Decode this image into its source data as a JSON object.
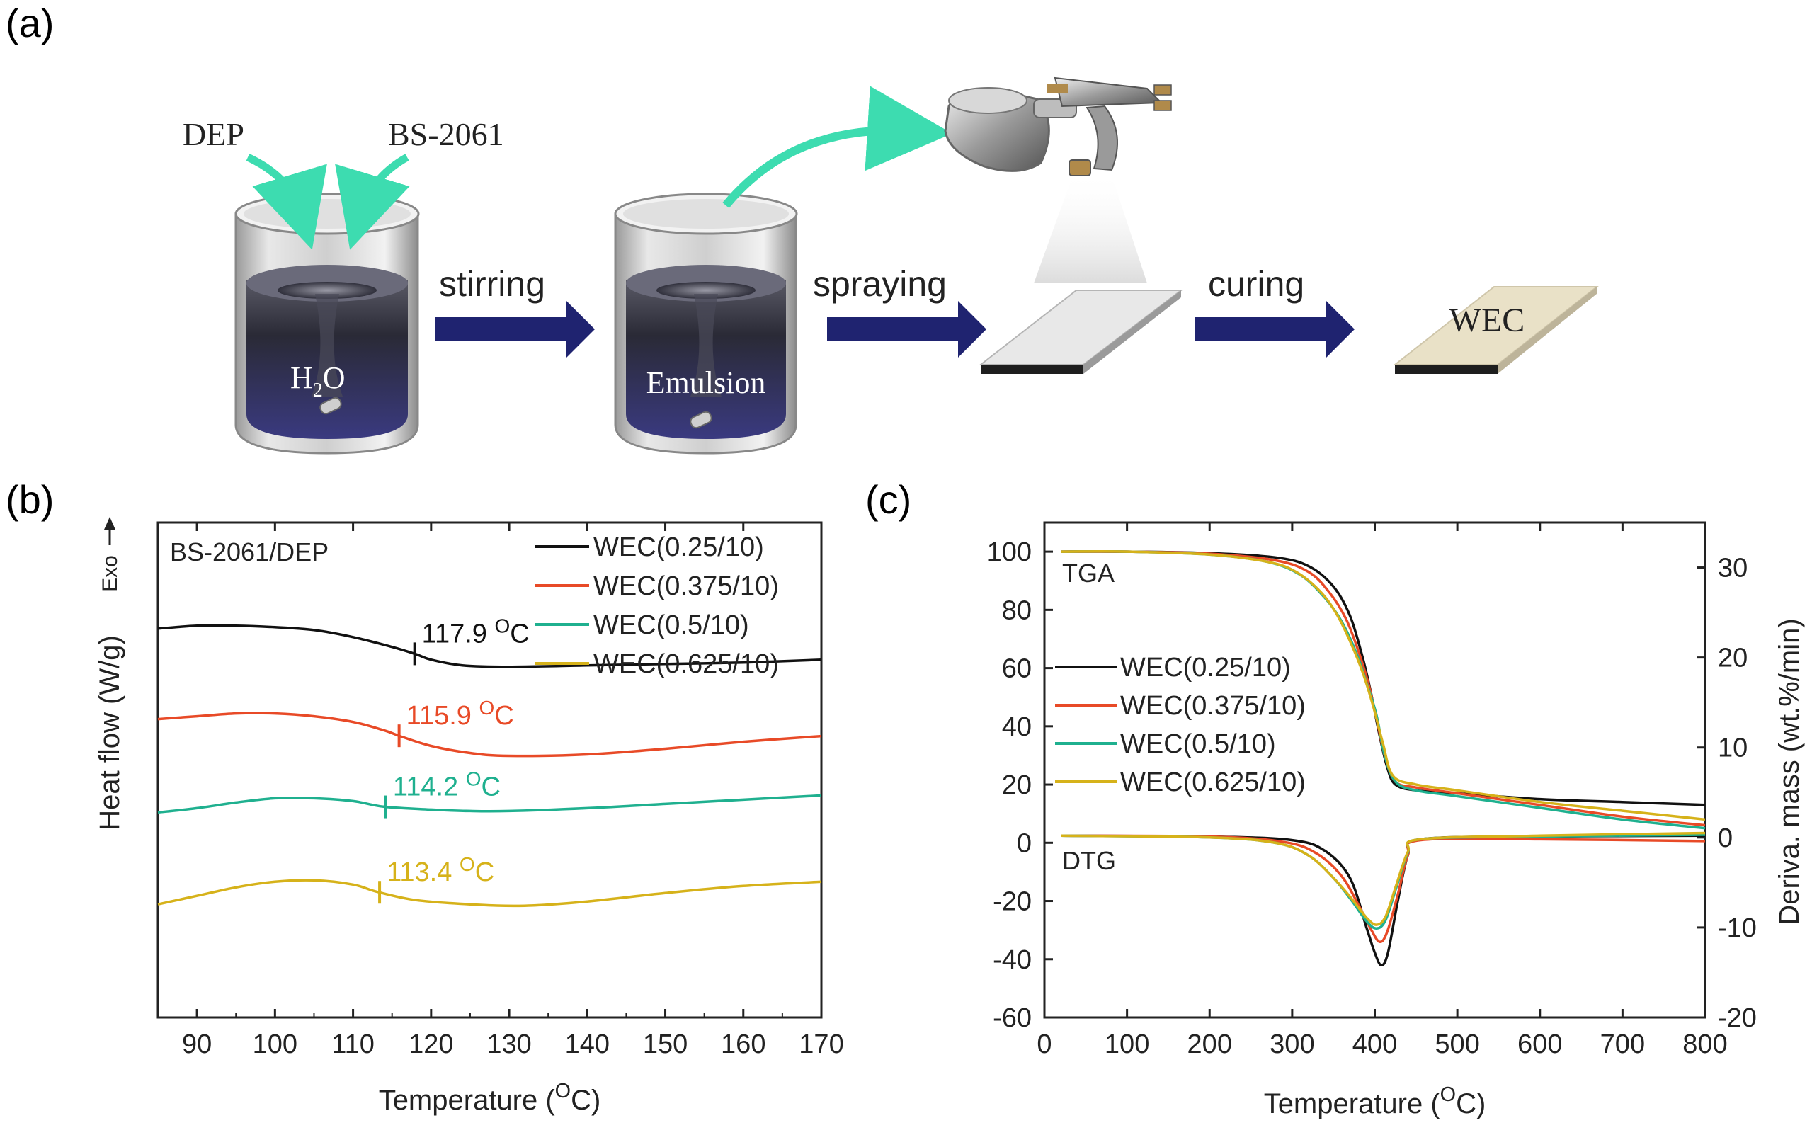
{
  "panels": {
    "a": "(a)",
    "b": "(b)",
    "c": "(c)"
  },
  "schematic": {
    "reagent_1": "DEP",
    "reagent_2": "BS-2061",
    "beaker_1_label": "H",
    "beaker_1_sub": "2",
    "beaker_1_tail": "O",
    "beaker_2_label": "Emulsion",
    "step_1": "stirring",
    "step_2": "spraying",
    "step_3": "curing",
    "product": "WEC",
    "colors": {
      "arrow": "#1f2370",
      "green_arrow": "#3ddcb0"
    }
  },
  "chart_data": [
    {
      "type": "line",
      "id": "b",
      "annotation": "BS-2061/DEP",
      "ylabel": "Heat flow (W/g)",
      "exo_label": "Exo",
      "xlabel_pre": "Temperature (",
      "xlabel_sup": "O",
      "xlabel_post": "C)",
      "xlim": [
        85,
        170
      ],
      "xticks": [
        90,
        100,
        110,
        120,
        130,
        140,
        150,
        160,
        170
      ],
      "y_ticks_shown": false,
      "series": [
        {
          "name": "WEC(0.25/10)",
          "color": "#111111",
          "points": [
            [
              85,
              1.0
            ],
            [
              90,
              1.02
            ],
            [
              95,
              1.02
            ],
            [
              100,
              1.01
            ],
            [
              105,
              0.99
            ],
            [
              110,
              0.94
            ],
            [
              115,
              0.87
            ],
            [
              118,
              0.82
            ],
            [
              120,
              0.78
            ],
            [
              124,
              0.74
            ],
            [
              130,
              0.73
            ],
            [
              140,
              0.74
            ],
            [
              150,
              0.75
            ],
            [
              160,
              0.76
            ],
            [
              170,
              0.78
            ]
          ],
          "tg": 117.9,
          "tg_label": "117.9",
          "tg_unit_sup": "O",
          "tg_unit": "C"
        },
        {
          "name": "WEC(0.375/10)",
          "color": "#e84a27",
          "points": [
            [
              85,
              0.36
            ],
            [
              90,
              0.38
            ],
            [
              95,
              0.4
            ],
            [
              100,
              0.4
            ],
            [
              105,
              0.38
            ],
            [
              110,
              0.34
            ],
            [
              114,
              0.28
            ],
            [
              116,
              0.24
            ],
            [
              120,
              0.17
            ],
            [
              125,
              0.12
            ],
            [
              130,
              0.1
            ],
            [
              140,
              0.11
            ],
            [
              150,
              0.15
            ],
            [
              160,
              0.2
            ],
            [
              170,
              0.24
            ]
          ],
          "tg": 115.9,
          "tg_label": "115.9",
          "tg_unit_sup": "O",
          "tg_unit": "C"
        },
        {
          "name": "WEC(0.5/10)",
          "color": "#1fb08f",
          "points": [
            [
              85,
              -0.3
            ],
            [
              90,
              -0.27
            ],
            [
              95,
              -0.23
            ],
            [
              100,
              -0.2
            ],
            [
              105,
              -0.2
            ],
            [
              110,
              -0.22
            ],
            [
              114,
              -0.26
            ],
            [
              120,
              -0.28
            ],
            [
              125,
              -0.29
            ],
            [
              130,
              -0.29
            ],
            [
              140,
              -0.27
            ],
            [
              150,
              -0.24
            ],
            [
              160,
              -0.21
            ],
            [
              170,
              -0.18
            ]
          ],
          "tg": 114.2,
          "tg_label": "114.2",
          "tg_unit_sup": "O",
          "tg_unit": "C"
        },
        {
          "name": "WEC(0.625/10)",
          "color": "#d6b21a",
          "points": [
            [
              85,
              -0.95
            ],
            [
              90,
              -0.89
            ],
            [
              95,
              -0.83
            ],
            [
              100,
              -0.79
            ],
            [
              105,
              -0.78
            ],
            [
              110,
              -0.81
            ],
            [
              113,
              -0.86
            ],
            [
              118,
              -0.92
            ],
            [
              125,
              -0.95
            ],
            [
              132,
              -0.96
            ],
            [
              140,
              -0.93
            ],
            [
              150,
              -0.87
            ],
            [
              160,
              -0.82
            ],
            [
              170,
              -0.79
            ]
          ],
          "tg": 113.4,
          "tg_label": "113.4",
          "tg_unit_sup": "O",
          "tg_unit": "C"
        }
      ]
    },
    {
      "type": "line",
      "id": "c",
      "annotation_top": "TGA",
      "annotation_bottom": "DTG",
      "ylabel_right": "Deriva. mass (wt.%/min)",
      "xlabel_pre": "Temperature (",
      "xlabel_sup": "O",
      "xlabel_post": "C)",
      "xlim": [
        0,
        800
      ],
      "ylim": [
        -60,
        110
      ],
      "ylim_right": [
        -20,
        35
      ],
      "xticks": [
        0,
        100,
        200,
        300,
        400,
        500,
        600,
        700,
        800
      ],
      "yticks": [
        -60,
        -40,
        -20,
        0,
        20,
        40,
        60,
        80,
        100
      ],
      "yticks_right": [
        -20,
        -10,
        0,
        10,
        20,
        30
      ],
      "tga_series": [
        {
          "name": "WEC(0.25/10)",
          "color": "#111111",
          "points": [
            [
              20,
              100
            ],
            [
              100,
              100
            ],
            [
              200,
              99.5
            ],
            [
              280,
              98
            ],
            [
              320,
              95
            ],
            [
              350,
              88
            ],
            [
              370,
              78
            ],
            [
              385,
              64
            ],
            [
              395,
              52
            ],
            [
              405,
              38
            ],
            [
              415,
              26
            ],
            [
              425,
              20
            ],
            [
              450,
              18
            ],
            [
              500,
              17
            ],
            [
              600,
              15
            ],
            [
              700,
              14
            ],
            [
              800,
              13
            ]
          ]
        },
        {
          "name": "WEC(0.375/10)",
          "color": "#e84a27",
          "points": [
            [
              20,
              100
            ],
            [
              100,
              100
            ],
            [
              200,
              99.3
            ],
            [
              280,
              97
            ],
            [
              320,
              93
            ],
            [
              345,
              86
            ],
            [
              365,
              77
            ],
            [
              380,
              66
            ],
            [
              392,
              55
            ],
            [
              402,
              43
            ],
            [
              412,
              30
            ],
            [
              425,
              21
            ],
            [
              450,
              19
            ],
            [
              500,
              17
            ],
            [
              600,
              13
            ],
            [
              700,
              9
            ],
            [
              800,
              6
            ]
          ]
        },
        {
          "name": "WEC(0.5/10)",
          "color": "#1fb08f",
          "points": [
            [
              20,
              100
            ],
            [
              100,
              100
            ],
            [
              200,
              99
            ],
            [
              270,
              96.5
            ],
            [
              310,
              92
            ],
            [
              340,
              84
            ],
            [
              360,
              76
            ],
            [
              378,
              65
            ],
            [
              390,
              55
            ],
            [
              402,
              44
            ],
            [
              412,
              30
            ],
            [
              425,
              21
            ],
            [
              450,
              18
            ],
            [
              500,
              16
            ],
            [
              600,
              12
            ],
            [
              700,
              8
            ],
            [
              800,
              5
            ]
          ]
        },
        {
          "name": "WEC(0.625/10)",
          "color": "#d6b21a",
          "points": [
            [
              20,
              100
            ],
            [
              100,
              100
            ],
            [
              200,
              99
            ],
            [
              270,
              96.5
            ],
            [
              305,
              93
            ],
            [
              335,
              86
            ],
            [
              355,
              78
            ],
            [
              372,
              68
            ],
            [
              386,
              58
            ],
            [
              398,
              47
            ],
            [
              410,
              34
            ],
            [
              422,
              23
            ],
            [
              450,
              20
            ],
            [
              500,
              18
            ],
            [
              600,
              14
            ],
            [
              700,
              11
            ],
            [
              800,
              8
            ]
          ]
        }
      ],
      "dtg_series": [
        {
          "name": "WEC(0.25/10)",
          "color": "#111111",
          "points": [
            [
              20,
              0.2
            ],
            [
              200,
              0.1
            ],
            [
              300,
              -0.3
            ],
            [
              340,
              -1.5
            ],
            [
              370,
              -4.5
            ],
            [
              390,
              -10
            ],
            [
              400,
              -12.8
            ],
            [
              408,
              -14.2
            ],
            [
              416,
              -12.8
            ],
            [
              428,
              -7
            ],
            [
              440,
              -2
            ],
            [
              455,
              -0.2
            ],
            [
              600,
              0.1
            ],
            [
              800,
              0.2
            ]
          ]
        },
        {
          "name": "WEC(0.375/10)",
          "color": "#e84a27",
          "points": [
            [
              20,
              0.2
            ],
            [
              200,
              0.1
            ],
            [
              290,
              -0.5
            ],
            [
              330,
              -1.8
            ],
            [
              360,
              -4.3
            ],
            [
              382,
              -7.8
            ],
            [
              396,
              -10.3
            ],
            [
              406,
              -11.6
            ],
            [
              415,
              -10.5
            ],
            [
              428,
              -6.3
            ],
            [
              440,
              -2
            ],
            [
              455,
              -0.3
            ],
            [
              600,
              -0.2
            ],
            [
              800,
              -0.4
            ]
          ]
        },
        {
          "name": "WEC(0.5/10)",
          "color": "#1fb08f",
          "points": [
            [
              20,
              0.2
            ],
            [
              200,
              0.0
            ],
            [
              280,
              -0.6
            ],
            [
              320,
              -2
            ],
            [
              350,
              -4.5
            ],
            [
              372,
              -7
            ],
            [
              390,
              -9.3
            ],
            [
              402,
              -10.1
            ],
            [
              413,
              -9.2
            ],
            [
              426,
              -5.6
            ],
            [
              440,
              -1.7
            ],
            [
              455,
              -0.2
            ],
            [
              600,
              0.1
            ],
            [
              800,
              0.3
            ]
          ]
        },
        {
          "name": "WEC(0.625/10)",
          "color": "#d6b21a",
          "points": [
            [
              20,
              0.2
            ],
            [
              200,
              0.0
            ],
            [
              280,
              -0.6
            ],
            [
              320,
              -2
            ],
            [
              350,
              -4.5
            ],
            [
              372,
              -6.8
            ],
            [
              390,
              -8.9
            ],
            [
              402,
              -9.7
            ],
            [
              413,
              -8.8
            ],
            [
              426,
              -5.3
            ],
            [
              440,
              -1.6
            ],
            [
              455,
              -0.2
            ],
            [
              600,
              0.2
            ],
            [
              800,
              0.5
            ]
          ]
        }
      ]
    }
  ]
}
